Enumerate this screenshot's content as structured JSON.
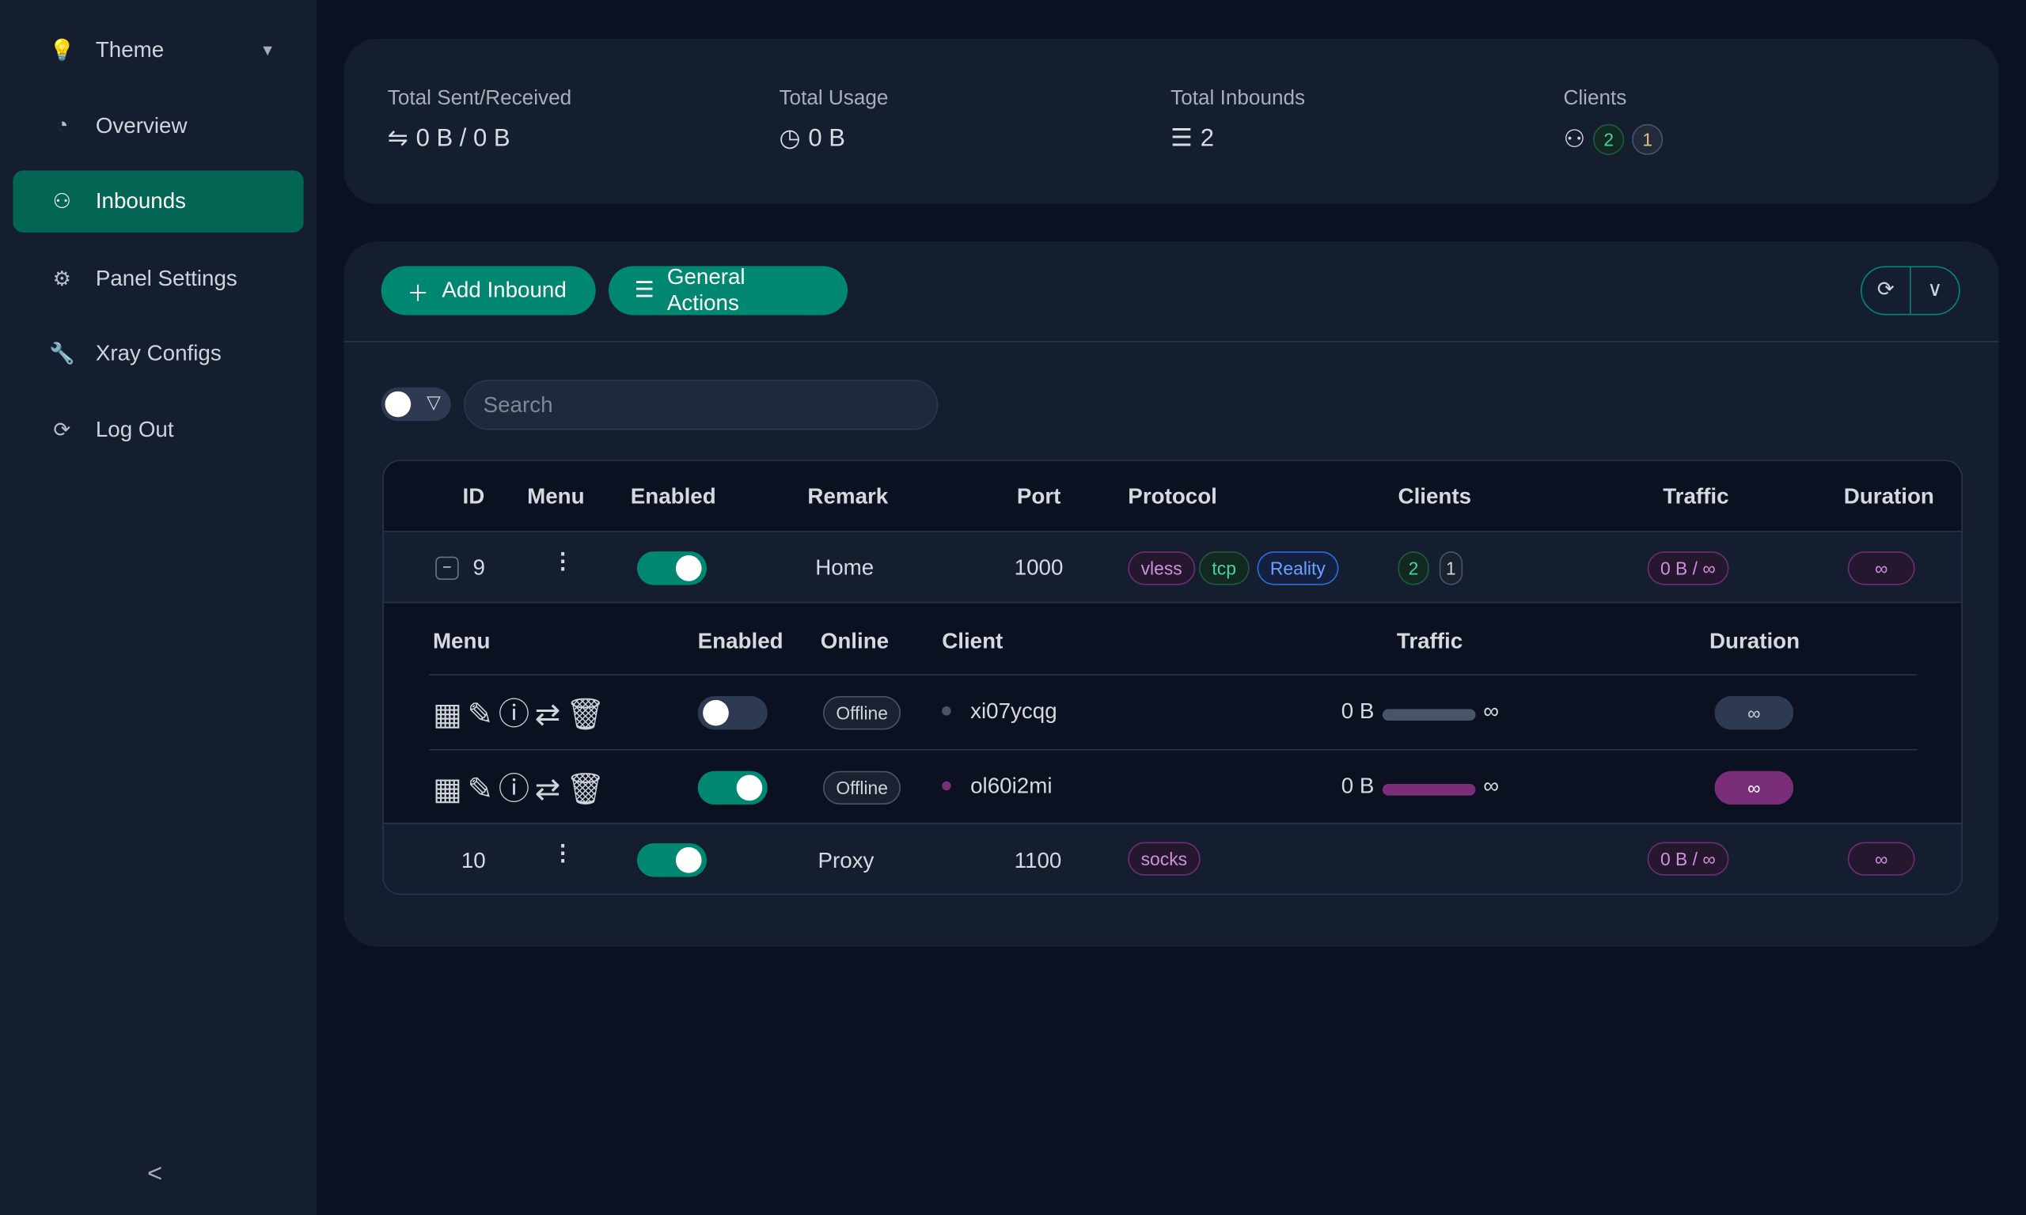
{
  "sidebar": {
    "items": [
      {
        "label": "Theme",
        "icon": "bulb-icon"
      },
      {
        "label": "Overview",
        "icon": "dashboard-icon"
      },
      {
        "label": "Inbounds",
        "icon": "user-icon",
        "active": true
      },
      {
        "label": "Panel Settings",
        "icon": "gear-icon"
      },
      {
        "label": "Xray Configs",
        "icon": "tool-icon"
      },
      {
        "label": "Log Out",
        "icon": "logout-icon"
      }
    ],
    "collapse": "<"
  },
  "stats": {
    "sent_received": {
      "title": "Total Sent/Received",
      "value": "0 B / 0 B"
    },
    "usage": {
      "title": "Total Usage",
      "value": "0 B"
    },
    "inbounds": {
      "title": "Total Inbounds",
      "value": "2"
    },
    "clients": {
      "title": "Clients",
      "active": "2",
      "other": "1"
    }
  },
  "toolbar": {
    "add": "Add Inbound",
    "general": "General Actions",
    "search_placeholder": "Search"
  },
  "colors": {
    "accent": "#008771",
    "active_nav": "#036654",
    "background": "#0b1120",
    "panel": "#151e2f"
  },
  "table": {
    "headers": [
      "ID",
      "Menu",
      "Enabled",
      "Remark",
      "Port",
      "Protocol",
      "Clients",
      "Traffic",
      "Duration"
    ],
    "rows": [
      {
        "id": "9",
        "enabled": true,
        "remark": "Home",
        "port": "1000",
        "protocol": [
          "vless",
          "tcp",
          "Reality"
        ],
        "clients_active": "2",
        "clients_other": "1",
        "traffic": "0 B / ∞",
        "duration": "∞",
        "expanded": true
      },
      {
        "id": "10",
        "enabled": true,
        "remark": "Proxy",
        "port": "1100",
        "protocol": [
          "socks"
        ],
        "traffic": "0 B / ∞",
        "duration": "∞"
      }
    ],
    "sub_headers": [
      "Menu",
      "Enabled",
      "Online",
      "Client",
      "Traffic",
      "Duration"
    ],
    "clients": [
      {
        "enabled": false,
        "online": "Offline",
        "client": "xi07ycqg",
        "traffic": "0 B",
        "limit": "∞",
        "duration": "∞"
      },
      {
        "enabled": true,
        "online": "Offline",
        "client": "ol60i2mi",
        "traffic": "0 B",
        "limit": "∞",
        "duration": "∞"
      }
    ]
  }
}
